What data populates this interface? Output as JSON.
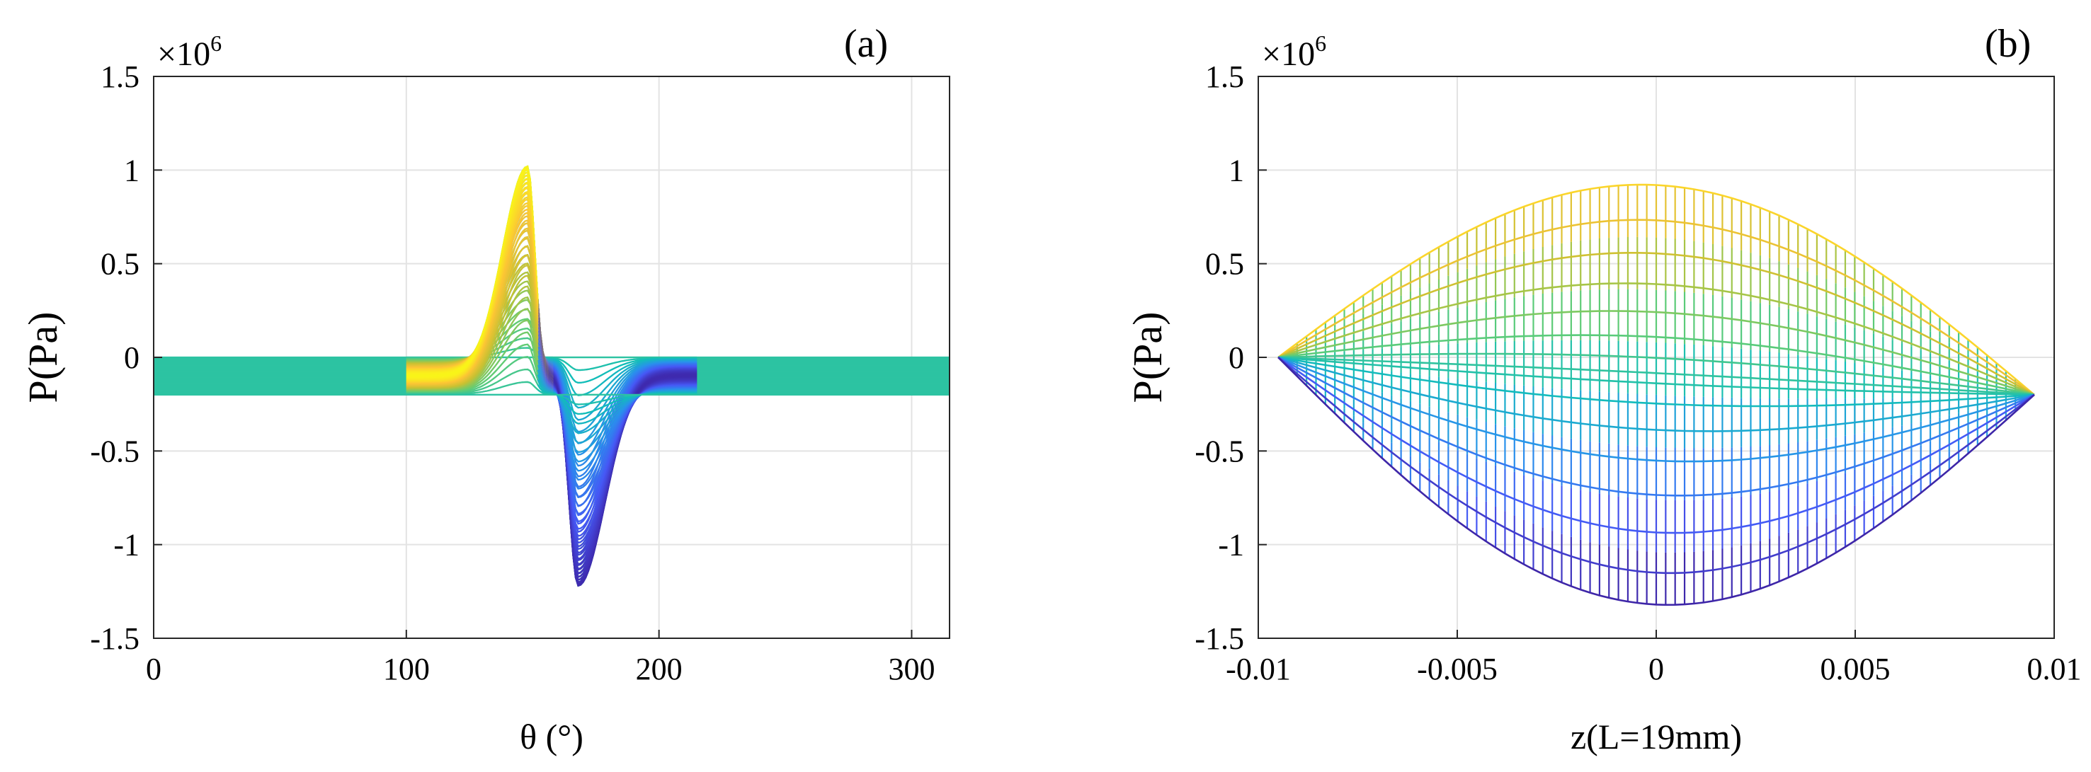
{
  "chart_data": [
    {
      "type": "line",
      "panel_label": "(a)",
      "description_series": "Family of ~60 circumferential pressure profiles, color mapped from blue (min) to yellow (max)",
      "xlabel": "θ (°)",
      "ylabel": "P(Pa)",
      "y_exponent": "×10",
      "y_exponent_power": "6",
      "xlim": [
        0,
        315
      ],
      "ylim": [
        -1.5,
        1.5
      ],
      "y_scale": 1000000,
      "xticks": [
        0,
        100,
        200,
        300
      ],
      "xtick_labels": [
        "0",
        "100",
        "200",
        "300"
      ],
      "yticks": [
        1.5,
        1,
        0.5,
        0,
        -0.5,
        -1,
        -1.5
      ],
      "ytick_labels": [
        "1.5",
        "1",
        "0.5",
        "0",
        "-0.5",
        "-1",
        "-1.5"
      ],
      "grid": true,
      "n_curves": 60,
      "baseline_range": [
        -0.2,
        0.0
      ],
      "positive_peak": {
        "theta": 148,
        "value": 1.02
      },
      "negative_peak": {
        "theta": 168,
        "value": -1.22
      },
      "curve_theta_range": [
        0,
        315
      ]
    },
    {
      "type": "line",
      "panel_label": "(b)",
      "description_series": "Family of ~60 axial pressure profiles plotted as mesh, color mapped from blue (min) to yellow (max)",
      "xlabel": "z(L=19mm)",
      "ylabel": "P(Pa)",
      "y_exponent": "×10",
      "y_exponent_power": "6",
      "xlim": [
        -0.01,
        0.01
      ],
      "ylim": [
        -1.5,
        1.5
      ],
      "y_scale": 1000000,
      "xticks": [
        -0.01,
        -0.005,
        0,
        0.005,
        0.01
      ],
      "xtick_labels": [
        "-0.01",
        "-0.005",
        "0",
        "0.005",
        "0.01"
      ],
      "yticks": [
        1.5,
        1,
        0.5,
        0,
        -0.5,
        -1,
        -1.5
      ],
      "ytick_labels": [
        "1.5",
        "1",
        "0.5",
        "0",
        "-0.5",
        "-1",
        "-1.5"
      ],
      "grid": true,
      "n_curves": 60,
      "z_range": [
        -0.0095,
        0.0095
      ],
      "left_end_value": 0.0,
      "right_end_value": -0.2,
      "max_center_value": 1.02,
      "min_center_value": -1.22
    }
  ]
}
